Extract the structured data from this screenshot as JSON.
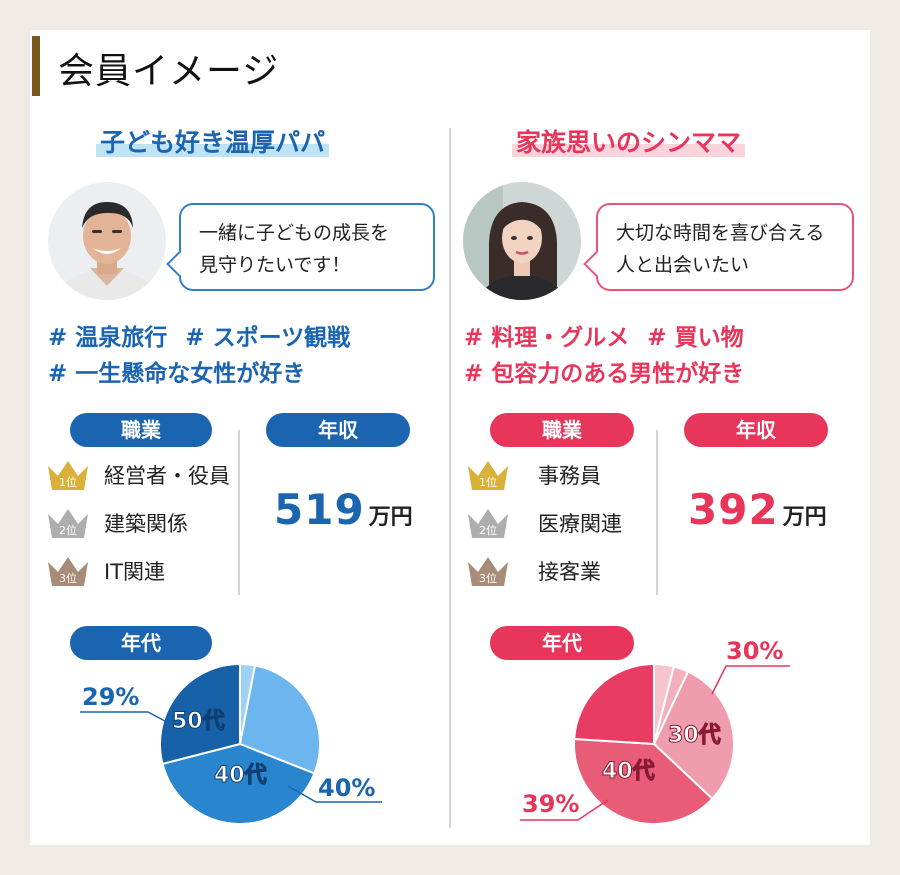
{
  "header": {
    "title": "会員イメージ"
  },
  "profiles": {
    "left": {
      "title": "子ども好き温厚パパ",
      "quote_line1": "一緒に子どもの成長を",
      "quote_line2": "見守りたいです！",
      "tags_line1": [
        "# 温泉旅行",
        "# スポーツ観戦"
      ],
      "tags_line2": [
        "# 一生懸命な女性が好き"
      ],
      "job_label": "職業",
      "income_label": "年収",
      "jobs": [
        {
          "rank": "1位",
          "name": "経営者・役員"
        },
        {
          "rank": "2位",
          "name": "建築関係"
        },
        {
          "rank": "3位",
          "name": "IT関連"
        }
      ],
      "income_value": "519",
      "income_unit": "万円",
      "age_label": "年代",
      "accent": "#1b64b0",
      "age_pct_30": "29%",
      "age_pct_40": "40%",
      "slice_label_50": "50代",
      "slice_label_40": "40代"
    },
    "right": {
      "title": "家族思いのシンママ",
      "quote_line1": "大切な時間を喜び合える",
      "quote_line2": "人と出会いたい",
      "tags_line1": [
        "# 料理・グルメ",
        "# 買い物"
      ],
      "tags_line2": [
        "# 包容力のある男性が好き"
      ],
      "job_label": "職業",
      "income_label": "年収",
      "jobs": [
        {
          "rank": "1位",
          "name": "事務員"
        },
        {
          "rank": "2位",
          "name": "医療関連"
        },
        {
          "rank": "3位",
          "name": "接客業"
        }
      ],
      "income_value": "392",
      "income_unit": "万円",
      "age_label": "年代",
      "accent": "#e8355a",
      "age_pct_30": "30%",
      "age_pct_40": "39%",
      "slice_label_30": "30代",
      "slice_label_40": "40代"
    }
  },
  "chart_data": [
    {
      "type": "pie",
      "series": [
        {
          "name": "50代",
          "values": [
            29
          ]
        },
        {
          "name": "40代",
          "values": [
            40
          ]
        }
      ],
      "slices": [
        {
          "label": "",
          "value": 3,
          "color": "#9fd0f5"
        },
        {
          "label": "",
          "value": 28,
          "color": "#6cb5ee"
        },
        {
          "label": "40代",
          "value": 40,
          "color": "#2a85cf"
        },
        {
          "label": "50代",
          "value": 29,
          "color": "#1761a8"
        }
      ]
    },
    {
      "type": "pie",
      "slices": [
        {
          "label": "",
          "value": 4,
          "color": "#f6c4cc"
        },
        {
          "label": "",
          "value": 3,
          "color": "#f3b0bc"
        },
        {
          "label": "30代",
          "value": 30,
          "color": "#ee9cae"
        },
        {
          "label": "40代",
          "value": 39,
          "color": "#e95c78"
        },
        {
          "label": "",
          "value": 24,
          "color": "#e93c63"
        }
      ]
    }
  ]
}
